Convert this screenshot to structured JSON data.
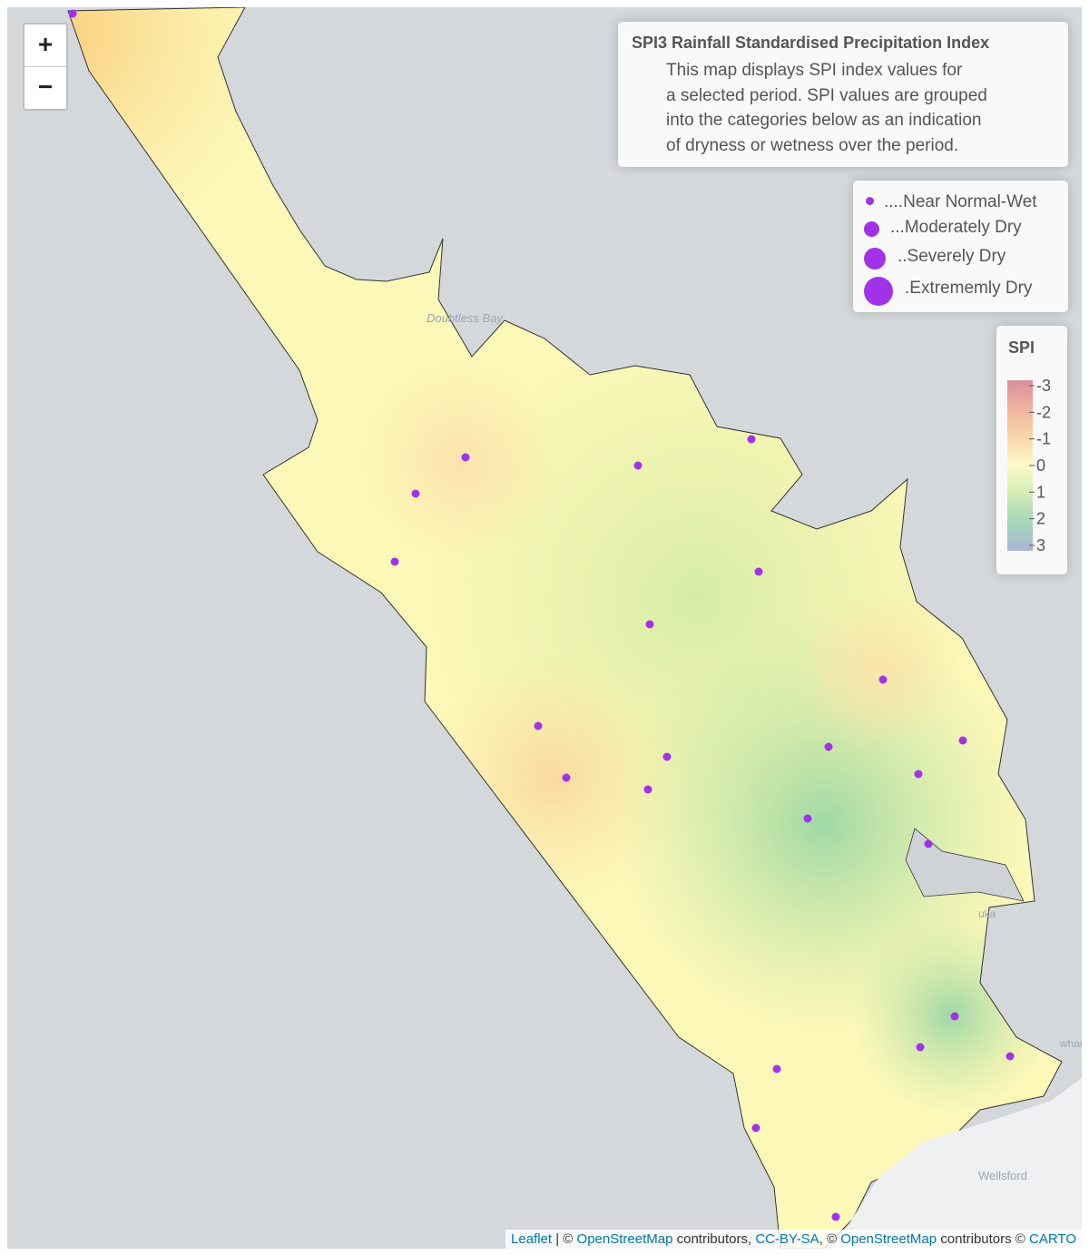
{
  "zoom": {
    "in": "+",
    "out": "−"
  },
  "info": {
    "title": "SPI3 Rainfall Standardised Precipitation Index",
    "lines": [
      "This map displays SPI index values for",
      "a selected period. SPI values are grouped",
      "into the categories below as an indication",
      "of dryness or wetness over the period."
    ]
  },
  "size_legend": [
    "....Near Normal-Wet",
    "...Moderately Dry",
    "..Severely Dry",
    ".Extrememly Dry"
  ],
  "spi_legend": {
    "title": "SPI",
    "range": [
      -3,
      3
    ],
    "ticks": [
      -3,
      -2,
      -1,
      0,
      1,
      2,
      3
    ],
    "colors": [
      "#d57a8c",
      "#eda78f",
      "#f8cf9c",
      "#fcf9c0",
      "#cde9a9",
      "#93d0ae",
      "#a2a8d0"
    ]
  },
  "place_labels": [
    "Doubtless Bay",
    "uka",
    "whai",
    "Wellsford"
  ],
  "attribution": [
    "Leaflet",
    " | © ",
    "OpenStreetMap",
    " contributors, ",
    "CC-BY-SA",
    ", © ",
    "OpenStreetMap",
    " contributors © ",
    "CARTO"
  ]
}
